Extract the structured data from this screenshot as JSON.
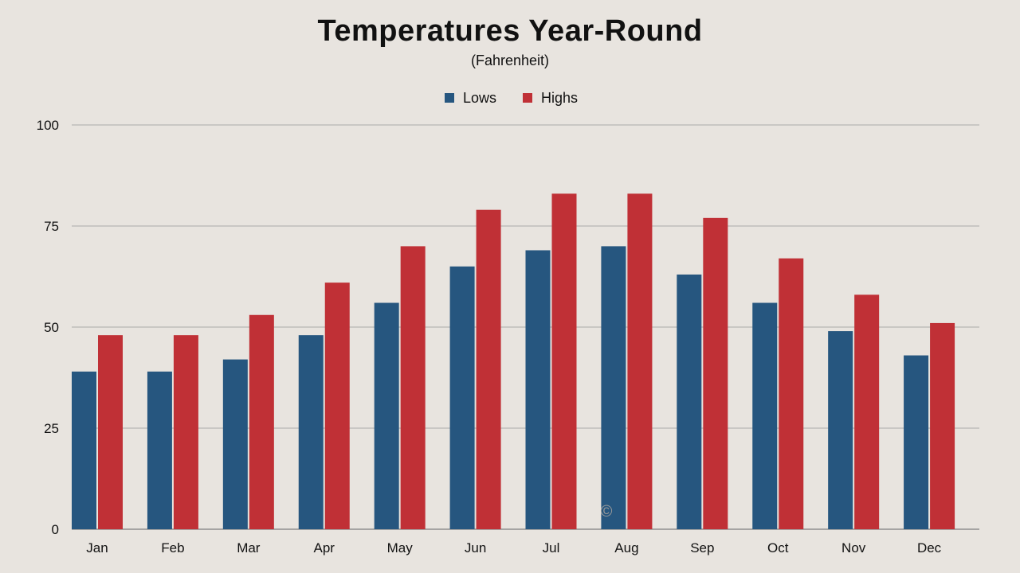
{
  "chart_data": {
    "type": "bar",
    "title": "Temperatures Year-Round",
    "subtitle": "(Fahrenheit)",
    "categories": [
      "Jan",
      "Feb",
      "Mar",
      "Apr",
      "May",
      "Jun",
      "Jul",
      "Aug",
      "Sep",
      "Oct",
      "Nov",
      "Dec"
    ],
    "series": [
      {
        "name": "Lows",
        "color": "#26567f",
        "values": [
          39,
          39,
          42,
          48,
          56,
          65,
          69,
          70,
          63,
          56,
          49,
          43
        ]
      },
      {
        "name": "Highs",
        "color": "#c03036",
        "values": [
          48,
          48,
          53,
          61,
          70,
          79,
          83,
          83,
          77,
          67,
          58,
          51
        ]
      }
    ],
    "yticks": [
      0,
      25,
      50,
      75,
      100
    ],
    "ylim": [
      0,
      100
    ],
    "grid": true,
    "legend_position": "top-center",
    "watermark": "©"
  }
}
